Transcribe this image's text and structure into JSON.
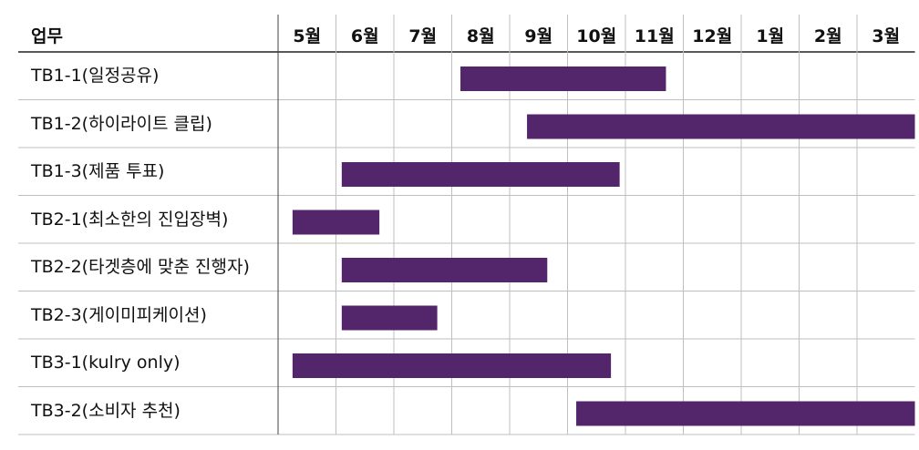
{
  "chart_data": {
    "type": "gantt",
    "header": {
      "task_column": "업무"
    },
    "months": [
      "5월",
      "6월",
      "7월",
      "8월",
      "9월",
      "10월",
      "11월",
      "12월",
      "1월",
      "2월",
      "3월"
    ],
    "tasks": [
      {
        "name": "TB1-1(일정공유)",
        "start": 3.15,
        "end": 6.7
      },
      {
        "name": "TB1-2(하이라이트 클립)",
        "start": 4.3,
        "end": 11.0
      },
      {
        "name": "TB1-3(제품 투표)",
        "start": 1.1,
        "end": 5.9
      },
      {
        "name": "TB2-1(최소한의 진입장벽)",
        "start": 0.25,
        "end": 1.75
      },
      {
        "name": "TB2-2(타겟층에 맞춘 진행자)",
        "start": 1.1,
        "end": 4.65
      },
      {
        "name": "TB2-3(게이미피케이션)",
        "start": 1.1,
        "end": 2.75
      },
      {
        "name": "TB3-1(kulry only)",
        "start": 0.25,
        "end": 5.75
      },
      {
        "name": "TB3-2(소비자 추천)",
        "start": 5.15,
        "end": 11.0
      }
    ],
    "colors": {
      "bar": "#53266c",
      "grid": "#bfbfbf",
      "header_rule": "#222222"
    }
  }
}
